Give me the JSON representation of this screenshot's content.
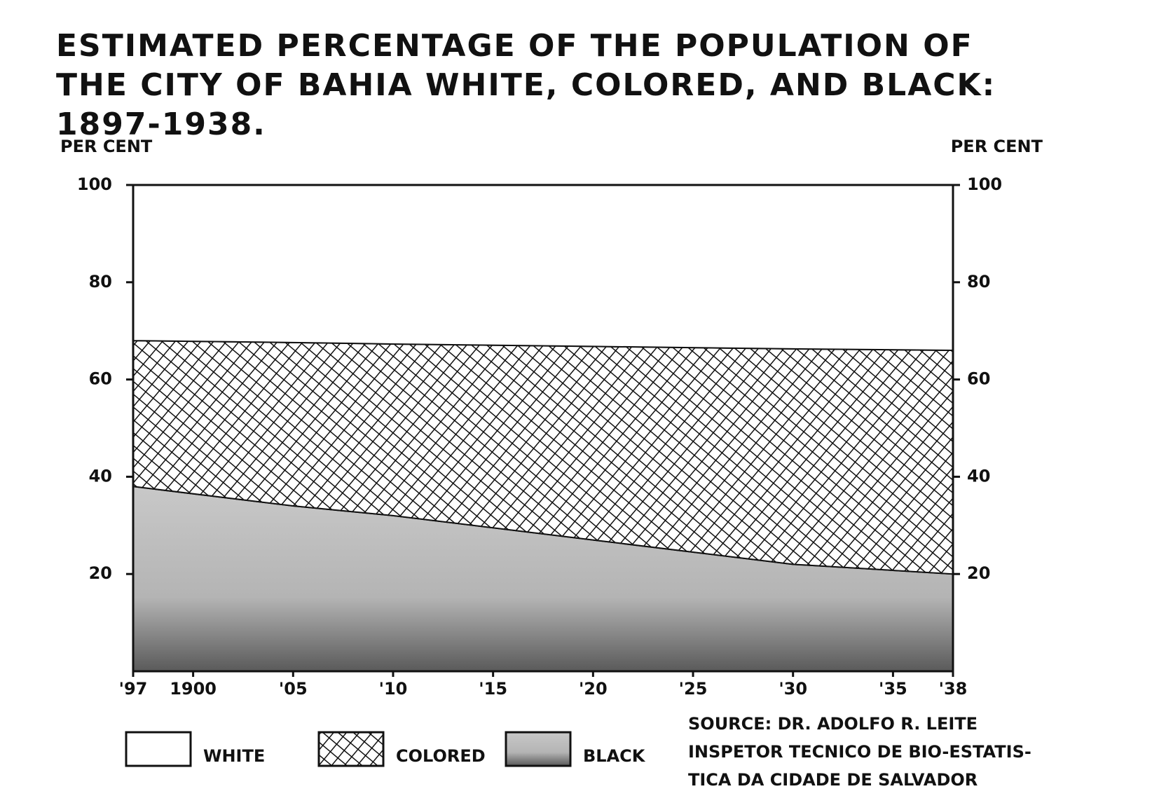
{
  "chart_data": {
    "type": "stacked_area",
    "title": "ESTIMATED PERCENTAGE OF THE POPULATION OF THE CITY OF BAHIA WHITE, COLORED, AND BLACK: 1897-1938.",
    "ylabel": "PER CENT",
    "y2label": "PER CENT",
    "x": [
      1897,
      1905,
      1910,
      1920,
      1930,
      1938
    ],
    "xlim": [
      1897,
      1938
    ],
    "xticks": [
      {
        "value": 1897,
        "label": "'97"
      },
      1900,
      {
        "value": 1905,
        "label": "'05"
      },
      {
        "value": 1910,
        "label": "'10"
      },
      {
        "value": 1915,
        "label": "'15"
      },
      {
        "value": 1920,
        "label": "'20"
      },
      {
        "value": 1925,
        "label": "'25"
      },
      {
        "value": 1930,
        "label": "'30"
      },
      {
        "value": 1935,
        "label": "'35"
      },
      {
        "value": 1938,
        "label": "'38"
      }
    ],
    "ylim": [
      0,
      100
    ],
    "yticks": [
      20,
      40,
      60,
      80,
      100
    ],
    "y2lim": [
      0,
      100
    ],
    "y2ticks": [
      20,
      40,
      60,
      80,
      100
    ],
    "series": [
      {
        "name": "BLACK",
        "color": "#7a7a7a",
        "pattern": "stipple",
        "values": [
          38,
          34,
          32,
          27,
          22,
          20
        ]
      },
      {
        "name": "COLORED",
        "color": "#111111",
        "pattern": "crosshatch",
        "values": [
          30,
          33.6,
          35.3,
          39.8,
          44.3,
          46
        ]
      },
      {
        "name": "WHITE",
        "color": "#ffffff",
        "pattern": "none",
        "values": [
          32,
          32.4,
          32.7,
          33.2,
          33.7,
          34
        ]
      }
    ],
    "source": [
      "SOURCE: DR. ADOLFO R. LEITE",
      "INSPETOR TECNICO DE BIO-ESTATIS-",
      "TICA DA CIDADE DE SALVADOR"
    ]
  }
}
